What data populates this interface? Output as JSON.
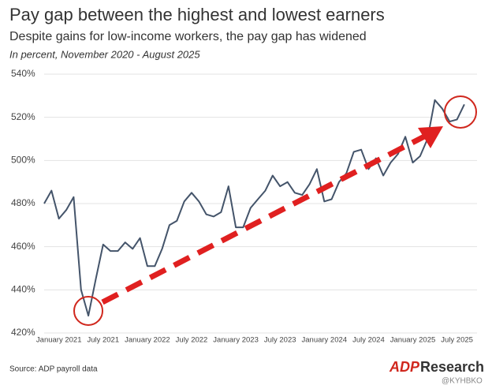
{
  "chart_data": {
    "type": "line",
    "title": "Pay gap between the highest and lowest earners",
    "subtitle": "Despite gains for low-income workers, the pay gap has widened",
    "note": "In percent, November 2020 - August 2025",
    "source": "Source: ADP payroll data",
    "logo": {
      "brand": "ADP",
      "text": "Research"
    },
    "watermark": "@KYHBKO",
    "categories": [
      null,
      null,
      "January 2021",
      null,
      null,
      null,
      null,
      null,
      "July 2021",
      null,
      null,
      null,
      null,
      null,
      "January 2022",
      null,
      null,
      null,
      null,
      null,
      "July 2022",
      null,
      null,
      null,
      null,
      null,
      "January 2023",
      null,
      null,
      null,
      null,
      null,
      "July 2023",
      null,
      null,
      null,
      null,
      null,
      "January 2024",
      null,
      null,
      null,
      null,
      null,
      "July 2024",
      null,
      null,
      null,
      null,
      null,
      "January 2025",
      null,
      null,
      null,
      null,
      null,
      "July 2025",
      null
    ],
    "series": [
      {
        "name": "Pay gap",
        "color": "#44546a",
        "values": [
          480,
          486,
          473,
          477,
          483,
          440,
          428,
          445,
          461,
          458,
          458,
          462,
          459,
          464,
          451,
          451,
          459,
          470,
          472,
          481,
          485,
          481,
          475,
          474,
          476,
          488,
          469,
          469,
          478,
          482,
          486,
          493,
          488,
          490,
          485,
          484,
          489,
          496,
          481,
          482,
          490,
          494,
          504,
          505,
          496,
          501,
          493,
          499,
          503,
          511,
          499,
          502,
          510,
          528,
          524,
          518,
          519,
          526
        ]
      }
    ],
    "ylim": [
      420,
      540
    ],
    "yticks": [
      {
        "value": 420,
        "label": "420%"
      },
      {
        "value": 440,
        "label": "440%"
      },
      {
        "value": 460,
        "label": "460%"
      },
      {
        "value": 480,
        "label": "480%"
      },
      {
        "value": 500,
        "label": "500%"
      },
      {
        "value": 520,
        "label": "520%"
      },
      {
        "value": 540,
        "label": "540%"
      }
    ],
    "grid": true
  }
}
